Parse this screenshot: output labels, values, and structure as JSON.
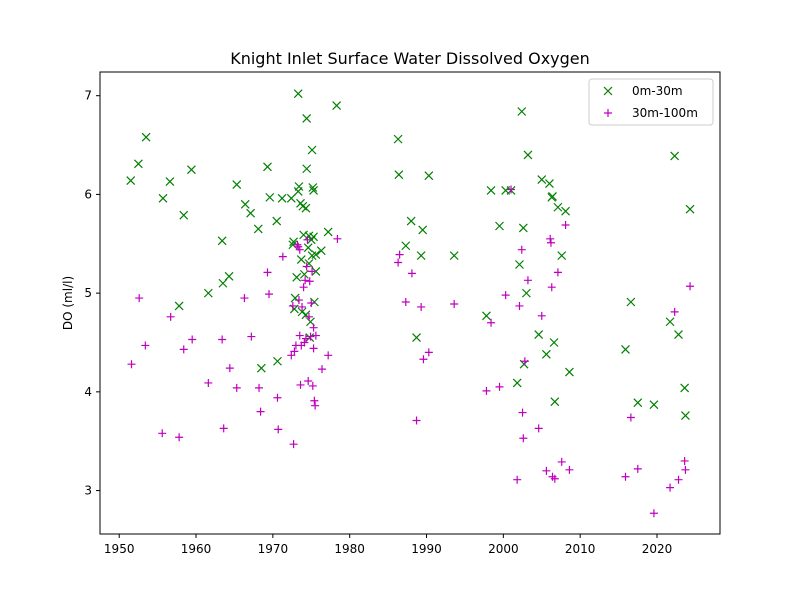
{
  "chart_data": {
    "type": "scatter",
    "title": "Knight Inlet Surface Water Dissolved Oxygen",
    "xlabel": "",
    "ylabel": "DO (ml/l)",
    "xlim": [
      1947.5,
      2028.2
    ],
    "ylim": [
      2.56,
      7.24
    ],
    "xticks": [
      1950,
      1960,
      1970,
      1980,
      1990,
      2000,
      2010,
      2020
    ],
    "yticks": [
      3,
      4,
      5,
      6,
      7
    ],
    "grid": false,
    "legend_position": "upper right",
    "series": [
      {
        "name": "0m-30m",
        "marker": "x",
        "color": "#008000",
        "points": [
          [
            1951.5,
            6.14
          ],
          [
            1952.5,
            6.31
          ],
          [
            1953.5,
            6.58
          ],
          [
            1955.7,
            5.96
          ],
          [
            1956.6,
            6.13
          ],
          [
            1957.8,
            4.87
          ],
          [
            1958.4,
            5.79
          ],
          [
            1959.4,
            6.25
          ],
          [
            1961.6,
            5.0
          ],
          [
            1963.4,
            5.53
          ],
          [
            1963.5,
            5.1
          ],
          [
            1964.3,
            5.17
          ],
          [
            1965.3,
            6.1
          ],
          [
            1966.4,
            5.9
          ],
          [
            1967.1,
            5.81
          ],
          [
            1968.1,
            5.65
          ],
          [
            1968.5,
            4.24
          ],
          [
            1969.3,
            6.28
          ],
          [
            1969.6,
            5.97
          ],
          [
            1970.5,
            5.73
          ],
          [
            1970.6,
            4.31
          ],
          [
            1971.2,
            5.96
          ],
          [
            1972.4,
            5.96
          ],
          [
            1972.6,
            5.49
          ],
          [
            1972.7,
            5.52
          ],
          [
            1972.8,
            4.84
          ],
          [
            1972.9,
            4.95
          ],
          [
            1973.1,
            5.16
          ],
          [
            1973.3,
            6.03
          ],
          [
            1973.3,
            7.02
          ],
          [
            1973.4,
            6.08
          ],
          [
            1973.6,
            5.91
          ],
          [
            1973.7,
            5.34
          ],
          [
            1973.8,
            4.81
          ],
          [
            1973.9,
            5.88
          ],
          [
            1974.0,
            5.59
          ],
          [
            1974.1,
            5.19
          ],
          [
            1974.3,
            5.86
          ],
          [
            1974.3,
            4.78
          ],
          [
            1974.4,
            6.77
          ],
          [
            1974.4,
            6.26
          ],
          [
            1974.6,
            5.46
          ],
          [
            1974.7,
            5.3
          ],
          [
            1974.7,
            5.58
          ],
          [
            1974.8,
            4.55
          ],
          [
            1974.9,
            4.71
          ],
          [
            1975.0,
            5.54
          ],
          [
            1975.1,
            5.38
          ],
          [
            1975.1,
            6.45
          ],
          [
            1975.2,
            6.07
          ],
          [
            1975.3,
            5.57
          ],
          [
            1975.3,
            6.04
          ],
          [
            1975.4,
            4.91
          ],
          [
            1975.6,
            5.22
          ],
          [
            1975.6,
            5.39
          ],
          [
            1976.3,
            5.43
          ],
          [
            1977.2,
            5.62
          ],
          [
            1978.3,
            6.9
          ],
          [
            1986.3,
            6.56
          ],
          [
            1986.4,
            6.2
          ],
          [
            1987.3,
            5.48
          ],
          [
            1988.0,
            5.73
          ],
          [
            1988.7,
            4.55
          ],
          [
            1989.3,
            5.38
          ],
          [
            1989.5,
            5.64
          ],
          [
            1990.3,
            6.19
          ],
          [
            1993.6,
            5.38
          ],
          [
            1997.8,
            4.77
          ],
          [
            1998.4,
            6.04
          ],
          [
            1999.5,
            5.68
          ],
          [
            2000.3,
            6.04
          ],
          [
            2001.0,
            6.04
          ],
          [
            2001.8,
            4.09
          ],
          [
            2002.1,
            5.29
          ],
          [
            2002.4,
            6.84
          ],
          [
            2002.6,
            5.66
          ],
          [
            2002.7,
            4.28
          ],
          [
            2003.0,
            5.0
          ],
          [
            2003.2,
            6.4
          ],
          [
            2004.6,
            4.58
          ],
          [
            2005.0,
            6.15
          ],
          [
            2005.6,
            4.38
          ],
          [
            2006.0,
            6.11
          ],
          [
            2006.3,
            5.97
          ],
          [
            2006.4,
            5.98
          ],
          [
            2006.6,
            4.5
          ],
          [
            2006.7,
            3.9
          ],
          [
            2007.1,
            5.87
          ],
          [
            2007.6,
            5.38
          ],
          [
            2008.1,
            5.83
          ],
          [
            2008.6,
            4.2
          ],
          [
            2015.9,
            4.43
          ],
          [
            2016.6,
            4.91
          ],
          [
            2017.5,
            3.89
          ],
          [
            2019.6,
            3.87
          ],
          [
            2021.7,
            4.71
          ],
          [
            2022.3,
            6.39
          ],
          [
            2022.8,
            4.58
          ],
          [
            2023.6,
            4.04
          ],
          [
            2023.7,
            3.76
          ],
          [
            2024.3,
            5.85
          ]
        ]
      },
      {
        "name": "30m-100m",
        "marker": "+",
        "color": "#bf00bf",
        "points": [
          [
            1951.6,
            4.28
          ],
          [
            1952.6,
            4.95
          ],
          [
            1953.4,
            4.47
          ],
          [
            1955.6,
            3.58
          ],
          [
            1956.7,
            4.76
          ],
          [
            1957.8,
            3.54
          ],
          [
            1958.4,
            4.43
          ],
          [
            1959.5,
            4.53
          ],
          [
            1961.6,
            4.09
          ],
          [
            1963.4,
            4.53
          ],
          [
            1963.6,
            3.63
          ],
          [
            1964.4,
            4.24
          ],
          [
            1965.3,
            4.04
          ],
          [
            1966.3,
            4.95
          ],
          [
            1967.2,
            4.56
          ],
          [
            1968.2,
            4.04
          ],
          [
            1968.4,
            3.8
          ],
          [
            1969.3,
            5.21
          ],
          [
            1969.5,
            4.99
          ],
          [
            1970.6,
            3.94
          ],
          [
            1970.7,
            3.62
          ],
          [
            1971.3,
            5.37
          ],
          [
            1972.4,
            4.37
          ],
          [
            1972.6,
            4.87
          ],
          [
            1972.7,
            3.47
          ],
          [
            1972.8,
            4.41
          ],
          [
            1973.0,
            4.47
          ],
          [
            1973.2,
            5.49
          ],
          [
            1973.3,
            5.47
          ],
          [
            1973.4,
            4.93
          ],
          [
            1973.5,
            4.57
          ],
          [
            1973.5,
            5.44
          ],
          [
            1973.6,
            4.07
          ],
          [
            1973.7,
            4.47
          ],
          [
            1973.8,
            4.86
          ],
          [
            1974.0,
            5.06
          ],
          [
            1974.1,
            4.5
          ],
          [
            1974.2,
            5.13
          ],
          [
            1974.3,
            4.54
          ],
          [
            1974.4,
            5.27
          ],
          [
            1974.5,
            5.54
          ],
          [
            1974.6,
            4.11
          ],
          [
            1974.7,
            4.76
          ],
          [
            1974.8,
            5.12
          ],
          [
            1974.9,
            4.56
          ],
          [
            1975.0,
            4.9
          ],
          [
            1975.1,
            5.22
          ],
          [
            1975.2,
            4.06
          ],
          [
            1975.3,
            4.65
          ],
          [
            1975.3,
            4.44
          ],
          [
            1975.4,
            3.91
          ],
          [
            1975.5,
            3.86
          ],
          [
            1975.6,
            4.57
          ],
          [
            1976.4,
            4.23
          ],
          [
            1977.2,
            4.37
          ],
          [
            1978.4,
            5.55
          ],
          [
            1986.3,
            5.31
          ],
          [
            1986.5,
            5.39
          ],
          [
            1987.3,
            4.91
          ],
          [
            1988.1,
            5.2
          ],
          [
            1988.7,
            3.71
          ],
          [
            1989.3,
            4.86
          ],
          [
            1989.6,
            4.33
          ],
          [
            1990.3,
            4.4
          ],
          [
            1993.6,
            4.89
          ],
          [
            1997.8,
            4.01
          ],
          [
            1998.4,
            4.7
          ],
          [
            1999.5,
            4.05
          ],
          [
            2000.3,
            4.98
          ],
          [
            2001.0,
            6.05
          ],
          [
            2001.8,
            3.11
          ],
          [
            2002.1,
            4.87
          ],
          [
            2002.4,
            5.44
          ],
          [
            2002.5,
            3.79
          ],
          [
            2002.6,
            3.53
          ],
          [
            2002.8,
            4.31
          ],
          [
            2003.2,
            5.13
          ],
          [
            2004.6,
            3.63
          ],
          [
            2005.0,
            4.77
          ],
          [
            2005.6,
            3.2
          ],
          [
            2006.1,
            5.55
          ],
          [
            2006.2,
            5.51
          ],
          [
            2006.3,
            5.06
          ],
          [
            2006.4,
            3.14
          ],
          [
            2006.7,
            3.12
          ],
          [
            2007.1,
            5.21
          ],
          [
            2007.6,
            3.29
          ],
          [
            2008.1,
            5.69
          ],
          [
            2008.6,
            3.21
          ],
          [
            2015.9,
            3.14
          ],
          [
            2016.6,
            3.74
          ],
          [
            2017.5,
            3.22
          ],
          [
            2019.6,
            2.77
          ],
          [
            2021.7,
            3.03
          ],
          [
            2022.3,
            4.81
          ],
          [
            2022.8,
            3.11
          ],
          [
            2023.6,
            3.3
          ],
          [
            2023.7,
            3.21
          ],
          [
            2024.3,
            5.07
          ]
        ]
      }
    ]
  }
}
